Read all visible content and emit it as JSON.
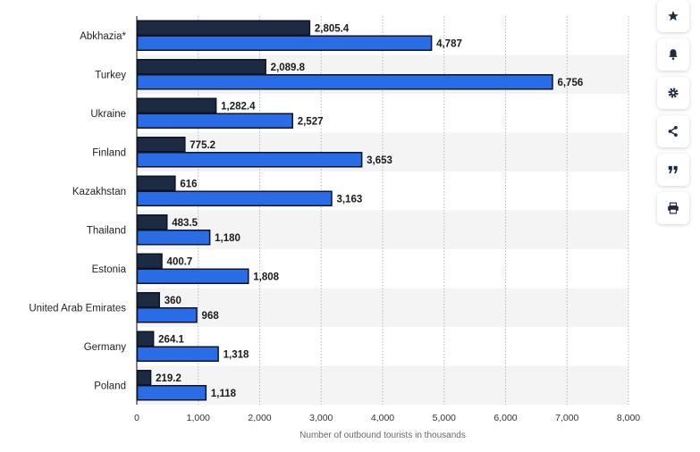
{
  "chart_data": {
    "type": "bar",
    "orientation": "horizontal",
    "categories": [
      "Abkhazia*",
      "Turkey",
      "Ukraine",
      "Finland",
      "Kazakhstan",
      "Thailand",
      "Estonia",
      "United Arab Emirates",
      "Germany",
      "Poland"
    ],
    "series": [
      {
        "values": [
          2805.4,
          2089.8,
          1282.4,
          775.2,
          616,
          483.5,
          400.7,
          360,
          264.1,
          219.2
        ],
        "labels": [
          "2,805.4",
          "2,089.8",
          "1,282.4",
          "775.2",
          "616",
          "483.5",
          "400.7",
          "360",
          "264.1",
          "219.2"
        ],
        "color": "#1c2a42"
      },
      {
        "values": [
          4787,
          6756,
          2527,
          3653,
          3163,
          1180,
          1808,
          968,
          1318,
          1118
        ],
        "labels": [
          "4,787",
          "6,756",
          "2,527",
          "3,653",
          "3,163",
          "1,180",
          "1,808",
          "968",
          "1,318",
          "1,118"
        ],
        "color": "#2a6ce6"
      }
    ],
    "xlabel": "Number of outbound tourists in thousands",
    "xlim": [
      0,
      8000
    ],
    "xticks": [
      0,
      1000,
      2000,
      3000,
      4000,
      5000,
      6000,
      7000,
      8000
    ],
    "xtick_labels": [
      "0",
      "1,000",
      "2,000",
      "3,000",
      "4,000",
      "5,000",
      "6,000",
      "7,000",
      "8,000"
    ],
    "grid": true,
    "legend": "none"
  },
  "toolbar": [
    {
      "icon": "star-icon",
      "name": "favorite-button"
    },
    {
      "icon": "bell-icon",
      "name": "notification-button"
    },
    {
      "icon": "gear-icon",
      "name": "settings-button"
    },
    {
      "icon": "share-icon",
      "name": "share-button"
    },
    {
      "icon": "quote-icon",
      "name": "cite-button"
    },
    {
      "icon": "print-icon",
      "name": "print-button"
    }
  ]
}
